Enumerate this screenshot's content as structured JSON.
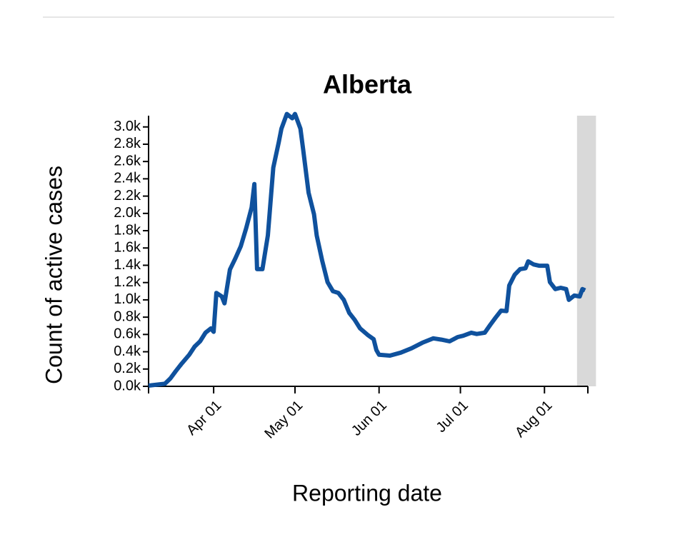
{
  "chart_data": {
    "type": "line",
    "title": "Alberta",
    "x_label": "Reporting date",
    "y_label": "Count of active cases",
    "x": [
      "Mar 08",
      "Mar 14",
      "Mar 16",
      "Mar 18",
      "Mar 20",
      "Mar 23",
      "Mar 25",
      "Mar 27",
      "Mar 29",
      "Mar 31",
      "Apr 01",
      "Apr 02",
      "Apr 04",
      "Apr 05",
      "Apr 07",
      "Apr 09",
      "Apr 11",
      "Apr 13",
      "Apr 15",
      "Apr 16",
      "Apr 17",
      "Apr 19",
      "Apr 21",
      "Apr 23",
      "Apr 25",
      "Apr 26",
      "Apr 28",
      "Apr 30",
      "May 01",
      "May 03",
      "May 04",
      "May 06",
      "May 08",
      "May 09",
      "May 11",
      "May 13",
      "May 15",
      "May 17",
      "May 19",
      "May 21",
      "May 23",
      "May 25",
      "May 28",
      "May 30",
      "May 31",
      "Jun 01",
      "Jun 05",
      "Jun 09",
      "Jun 13",
      "Jun 17",
      "Jun 21",
      "Jun 24",
      "Jun 27",
      "Jun 30",
      "Jul 02",
      "Jul 05",
      "Jul 07",
      "Jul 10",
      "Jul 12",
      "Jul 14",
      "Jul 16",
      "Jul 18",
      "Jul 19",
      "Jul 21",
      "Jul 23",
      "Jul 25",
      "Jul 26",
      "Jul 28",
      "Jul 30",
      "Aug 02",
      "Aug 03",
      "Aug 05",
      "Aug 07",
      "Aug 09",
      "Aug 10",
      "Aug 12",
      "Aug 14",
      "Aug 15",
      "Aug 16"
    ],
    "series": [
      {
        "name": "Active cases",
        "color": "#0f519d",
        "values": [
          8,
          30,
          90,
          175,
          255,
          365,
          460,
          520,
          620,
          670,
          630,
          1080,
          1040,
          960,
          1350,
          1480,
          1620,
          1830,
          2070,
          2340,
          1355,
          1355,
          1745,
          2530,
          2820,
          2980,
          3150,
          3100,
          3150,
          2980,
          2740,
          2240,
          1990,
          1745,
          1455,
          1205,
          1100,
          1080,
          1000,
          850,
          770,
          670,
          590,
          545,
          420,
          365,
          355,
          390,
          440,
          505,
          555,
          540,
          520,
          570,
          585,
          620,
          605,
          620,
          710,
          795,
          875,
          870,
          1165,
          1290,
          1355,
          1365,
          1445,
          1410,
          1395,
          1395,
          1205,
          1125,
          1140,
          1125,
          1000,
          1050,
          1040,
          1125,
          1110
        ]
      }
    ],
    "xlim": [
      "Mar 08",
      "Aug 17"
    ],
    "xticks": [
      "Apr 01",
      "May 01",
      "Jun 01",
      "Jul 01",
      "Aug 01"
    ],
    "shaded_region": [
      "Aug 13",
      "Aug 20"
    ],
    "shade_color": "#d9d9d9",
    "ylim": [
      0,
      3130
    ],
    "yticks": [
      {
        "value": 0,
        "label": "0.0k"
      },
      {
        "value": 200,
        "label": "0.2k"
      },
      {
        "value": 400,
        "label": "0.4k"
      },
      {
        "value": 600,
        "label": "0.6k"
      },
      {
        "value": 800,
        "label": "0.8k"
      },
      {
        "value": 1000,
        "label": "1.0k"
      },
      {
        "value": 1200,
        "label": "1.2k"
      },
      {
        "value": 1400,
        "label": "1.4k"
      },
      {
        "value": 1600,
        "label": "1.6k"
      },
      {
        "value": 1800,
        "label": "1.8k"
      },
      {
        "value": 2000,
        "label": "2.0k"
      },
      {
        "value": 2200,
        "label": "2.2k"
      },
      {
        "value": 2400,
        "label": "2.4k"
      },
      {
        "value": 2600,
        "label": "2.6k"
      },
      {
        "value": 2800,
        "label": "2.8k"
      },
      {
        "value": 3000,
        "label": "3.0k"
      }
    ],
    "grid": false
  }
}
